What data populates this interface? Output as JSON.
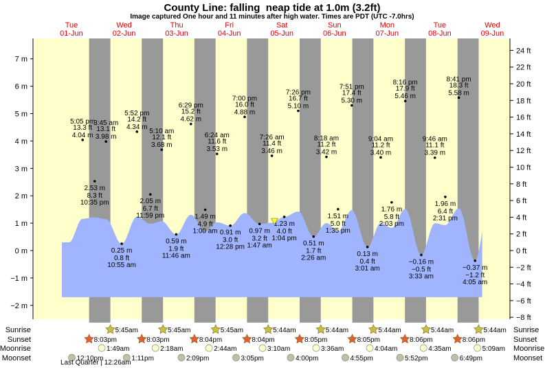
{
  "chart_data": {
    "type": "area",
    "title": "County Line: falling  neap tide at 1.0m (3.2ft)",
    "subtitle": "Image captured One hour and 11 minutes after high water. Times are PDT (UTC -7.0hrs)",
    "colors": {
      "day": "#ffffcc",
      "night": "#999999",
      "water": "#a0b4ff",
      "day_labels": "#dd0000",
      "sunrise": "#c8c040",
      "sunset": "#e06030",
      "moonrise": "#ffffcc",
      "moonset": "#c0c0a8"
    },
    "days": [
      {
        "name": "Tue",
        "date": "01-Jun"
      },
      {
        "name": "Wed",
        "date": "02-Jun"
      },
      {
        "name": "Thu",
        "date": "03-Jun"
      },
      {
        "name": "Fri",
        "date": "04-Jun"
      },
      {
        "name": "Sat",
        "date": "05-Jun"
      },
      {
        "name": "Sun",
        "date": "06-Jun"
      },
      {
        "name": "Mon",
        "date": "07-Jun"
      },
      {
        "name": "Tue",
        "date": "08-Jun"
      },
      {
        "name": "Wed",
        "date": "09-Jun"
      }
    ],
    "y_left": {
      "unit": "m",
      "ylim": [
        -2,
        7
      ],
      "ticks": [
        "7 m",
        "6 m",
        "5 m",
        "4 m",
        "3 m",
        "2 m",
        "1 m",
        "0 m",
        "−1 m",
        "−2 m"
      ],
      "tick_values": [
        7,
        6,
        5,
        4,
        3,
        2,
        1,
        0,
        -1,
        -2
      ]
    },
    "y_right": {
      "unit": "ft",
      "ticks": [
        "24 ft",
        "22 ft",
        "20 ft",
        "18 ft",
        "16 ft",
        "14 ft",
        "12 ft",
        "10 ft",
        "8 ft",
        "6 ft",
        "4 ft",
        "2 ft",
        "0 ft",
        "−2 ft",
        "−4 ft",
        "−6 ft",
        "−8 ft"
      ],
      "tick_values": [
        24,
        22,
        20,
        18,
        16,
        14,
        12,
        10,
        8,
        6,
        4,
        2,
        0,
        -2,
        -4,
        -6,
        -8
      ]
    },
    "extremes": [
      {
        "day": 0,
        "time": "5:05 pm",
        "m": 4.04,
        "m_label": "4.04 m",
        "ft_label": "13.3 ft"
      },
      {
        "day": 0,
        "time": "10:35 pm",
        "m": 2.53,
        "m_label": "2.53 m",
        "ft_label": "8.3 ft"
      },
      {
        "day": 1,
        "time": "3:45 am",
        "m": 3.98,
        "m_label": "3.98 m",
        "ft_label": "13.1 ft"
      },
      {
        "day": 1,
        "time": "10:55 am",
        "m": 0.25,
        "m_label": "0.25 m",
        "ft_label": "0.8 ft"
      },
      {
        "day": 1,
        "time": "5:52 pm",
        "m": 4.34,
        "m_label": "4.34 m",
        "ft_label": "14.2 ft"
      },
      {
        "day": 1,
        "time": "11:59 pm",
        "m": 2.05,
        "m_label": "2.05 m",
        "ft_label": "6.7 ft"
      },
      {
        "day": 2,
        "time": "5:10 am",
        "m": 3.68,
        "m_label": "3.68 m",
        "ft_label": "12.1 ft"
      },
      {
        "day": 2,
        "time": "11:46 am",
        "m": 0.59,
        "m_label": "0.59 m",
        "ft_label": "1.9 ft"
      },
      {
        "day": 2,
        "time": "6:29 pm",
        "m": 4.62,
        "m_label": "4.62 m",
        "ft_label": "15.2 ft"
      },
      {
        "day": 3,
        "time": "1:00 am",
        "m": 1.49,
        "m_label": "1.49 m",
        "ft_label": "4.9 ft"
      },
      {
        "day": 3,
        "time": "6:24 am",
        "m": 3.53,
        "m_label": "3.53 m",
        "ft_label": "11.6 ft"
      },
      {
        "day": 3,
        "time": "12:28 pm",
        "m": 0.91,
        "m_label": "0.91 m",
        "ft_label": "3.0 ft"
      },
      {
        "day": 3,
        "time": "7:00 pm",
        "m": 4.88,
        "m_label": "4.88 m",
        "ft_label": "16.0 ft"
      },
      {
        "day": 4,
        "time": "1:47 am",
        "m": 0.97,
        "m_label": "0.97 m",
        "ft_label": "3.2 ft"
      },
      {
        "day": 4,
        "time": "7:26 am",
        "m": 3.46,
        "m_label": "3.46 m",
        "ft_label": "11.4 ft"
      },
      {
        "day": 4,
        "time": "1:04 pm",
        "m": 1.23,
        "m_label": "1.23 m",
        "ft_label": "4.0 ft"
      },
      {
        "day": 4,
        "time": "7:26 pm",
        "m": 5.1,
        "m_label": "5.10 m",
        "ft_label": "16.7 ft"
      },
      {
        "day": 5,
        "time": "2:26 am",
        "m": 0.51,
        "m_label": "0.51 m",
        "ft_label": "1.7 ft"
      },
      {
        "day": 5,
        "time": "8:18 am",
        "m": 3.42,
        "m_label": "3.42 m",
        "ft_label": "11.2 ft"
      },
      {
        "day": 5,
        "time": "1:35 pm",
        "m": 1.51,
        "m_label": "1.51 m",
        "ft_label": "5.0 ft"
      },
      {
        "day": 5,
        "time": "7:51 pm",
        "m": 5.3,
        "m_label": "5.30 m",
        "ft_label": "17.4 ft"
      },
      {
        "day": 6,
        "time": "3:01 am",
        "m": 0.13,
        "m_label": "0.13 m",
        "ft_label": "0.4 ft"
      },
      {
        "day": 6,
        "time": "9:04 am",
        "m": 3.4,
        "m_label": "3.40 m",
        "ft_label": "11.2 ft"
      },
      {
        "day": 6,
        "time": "2:03 pm",
        "m": 1.76,
        "m_label": "1.76 m",
        "ft_label": "5.8 ft"
      },
      {
        "day": 6,
        "time": "8:16 pm",
        "m": 5.46,
        "m_label": "5.46 m",
        "ft_label": "17.9 ft"
      },
      {
        "day": 7,
        "time": "3:33 am",
        "m": -0.16,
        "m_label": "−0.16 m",
        "ft_label": "−0.5 ft"
      },
      {
        "day": 7,
        "time": "9:46 am",
        "m": 3.39,
        "m_label": "3.39 m",
        "ft_label": "11.1 ft"
      },
      {
        "day": 7,
        "time": "2:31 pm",
        "m": 1.96,
        "m_label": "1.96 m",
        "ft_label": "6.4 ft"
      },
      {
        "day": 7,
        "time": "8:41 pm",
        "m": 5.58,
        "m_label": "5.58 m",
        "ft_label": "18.3 ft"
      },
      {
        "day": 8,
        "time": "4:05 am",
        "m": -0.37,
        "m_label": "−0.37 m",
        "ft_label": "−1.2 ft"
      }
    ],
    "current": {
      "day": 4,
      "time": "8:37 am",
      "m": 1.0
    },
    "rows": {
      "labels": {
        "sunrise": "Sunrise",
        "sunset": "Sunset",
        "moonrise": "Moonrise",
        "moonset": "Moonset"
      },
      "sunrise": [
        {
          "day": 1,
          "time": "5:45am"
        },
        {
          "day": 2,
          "time": "5:45am"
        },
        {
          "day": 3,
          "time": "5:45am"
        },
        {
          "day": 4,
          "time": "5:44am"
        },
        {
          "day": 5,
          "time": "5:44am"
        },
        {
          "day": 6,
          "time": "5:44am"
        },
        {
          "day": 7,
          "time": "5:44am"
        },
        {
          "day": 8,
          "time": "5:44am"
        }
      ],
      "sunset": [
        {
          "day": 0,
          "time": "8:03pm"
        },
        {
          "day": 1,
          "time": "8:03pm"
        },
        {
          "day": 2,
          "time": "8:04pm"
        },
        {
          "day": 3,
          "time": "8:04pm"
        },
        {
          "day": 4,
          "time": "8:05pm"
        },
        {
          "day": 5,
          "time": "8:05pm"
        },
        {
          "day": 6,
          "time": "8:06pm"
        },
        {
          "day": 7,
          "time": "8:06pm"
        }
      ],
      "moonrise": [
        {
          "day": 1,
          "time": "1:49am"
        },
        {
          "day": 2,
          "time": "2:18am"
        },
        {
          "day": 3,
          "time": "2:44am"
        },
        {
          "day": 4,
          "time": "3:10am"
        },
        {
          "day": 5,
          "time": "3:36am"
        },
        {
          "day": 6,
          "time": "4:04am"
        },
        {
          "day": 7,
          "time": "4:35am"
        },
        {
          "day": 8,
          "time": "5:09am"
        }
      ],
      "moonset": [
        {
          "day": 0,
          "time": "12:10pm"
        },
        {
          "day": 1,
          "time": "1:11pm"
        },
        {
          "day": 2,
          "time": "2:09pm"
        },
        {
          "day": 3,
          "time": "3:05pm"
        },
        {
          "day": 4,
          "time": "4:00pm"
        },
        {
          "day": 5,
          "time": "4:55pm"
        },
        {
          "day": 6,
          "time": "5:52pm"
        },
        {
          "day": 7,
          "time": "6:49pm"
        }
      ]
    },
    "moon_phase": "Last Quarter | 12:26am"
  }
}
